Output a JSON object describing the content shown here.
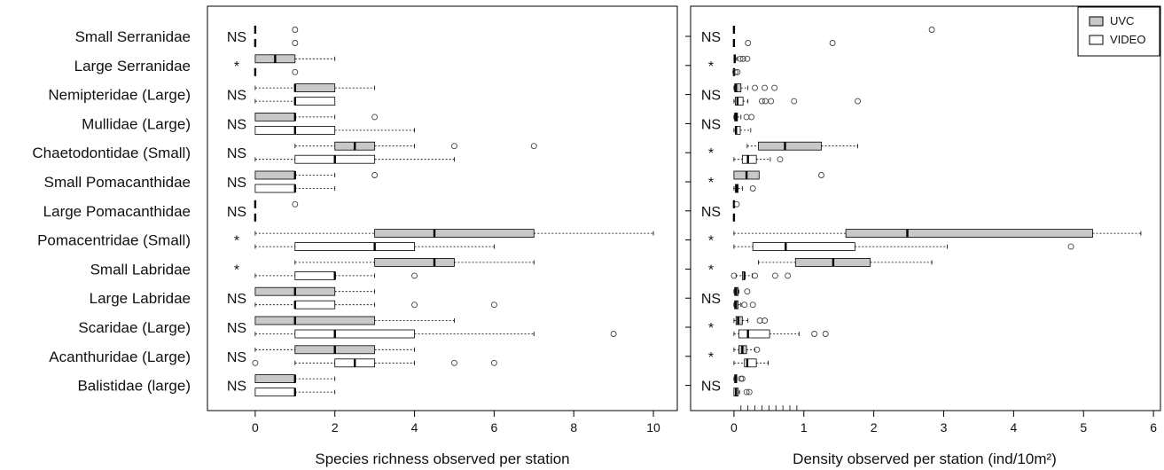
{
  "chart_data": [
    {
      "type": "boxplot",
      "xlabel": "Species richness observed per station",
      "xlim": [
        -1.2,
        10.6
      ],
      "xticks": [
        "0",
        "2",
        "4",
        "6",
        "8",
        "10"
      ],
      "categories": [
        "Small Serranidae",
        "Large Serranidae",
        "Nemipteridae (Large)",
        "Mullidae (Large)",
        "Chaetodontidae (Small)",
        "Small Pomacanthidae",
        "Large Pomacanthidae",
        "Pomacentridae (Small)",
        "Small Labridae",
        "Large Labridae",
        "Scaridae (Large)",
        "Acanthuridae (Large)",
        "Balistidae (large)"
      ],
      "significance": [
        "NS",
        "*",
        "NS",
        "NS",
        "NS",
        "NS",
        "NS",
        "*",
        "*",
        "NS",
        "NS",
        "NS",
        "NS"
      ],
      "series": [
        {
          "name": "UVC",
          "boxes": [
            {
              "min": 0,
              "q1": 0,
              "median": 0,
              "q3": 0,
              "max": 0,
              "outliers": [
                1
              ]
            },
            {
              "min": 0,
              "q1": 0,
              "median": 0.5,
              "q3": 1,
              "max": 2,
              "outliers": []
            },
            {
              "min": 0,
              "q1": 1,
              "median": 1,
              "q3": 2,
              "max": 3,
              "outliers": []
            },
            {
              "min": 0,
              "q1": 0,
              "median": 1,
              "q3": 1,
              "max": 2,
              "outliers": [
                3
              ]
            },
            {
              "min": 1,
              "q1": 2,
              "median": 2.5,
              "q3": 3,
              "max": 4,
              "outliers": [
                5,
                7
              ]
            },
            {
              "min": 0,
              "q1": 0,
              "median": 1,
              "q3": 1,
              "max": 2,
              "outliers": [
                3
              ]
            },
            {
              "min": 0,
              "q1": 0,
              "median": 0,
              "q3": 0,
              "max": 0,
              "outliers": [
                1
              ]
            },
            {
              "min": 0,
              "q1": 3,
              "median": 4.5,
              "q3": 7,
              "max": 10,
              "outliers": []
            },
            {
              "min": 1,
              "q1": 3,
              "median": 4.5,
              "q3": 5,
              "max": 7,
              "outliers": []
            },
            {
              "min": 0,
              "q1": 0,
              "median": 1,
              "q3": 2,
              "max": 3,
              "outliers": []
            },
            {
              "min": 0,
              "q1": 0,
              "median": 1,
              "q3": 3,
              "max": 5,
              "outliers": []
            },
            {
              "min": 0,
              "q1": 1,
              "median": 2,
              "q3": 3,
              "max": 4,
              "outliers": []
            },
            {
              "min": 0,
              "q1": 0,
              "median": 1,
              "q3": 1,
              "max": 2,
              "outliers": []
            }
          ]
        },
        {
          "name": "VIDEO",
          "boxes": [
            {
              "min": 0,
              "q1": 0,
              "median": 0,
              "q3": 0,
              "max": 0,
              "outliers": [
                1
              ]
            },
            {
              "min": 0,
              "q1": 0,
              "median": 0,
              "q3": 0,
              "max": 0,
              "outliers": [
                1
              ]
            },
            {
              "min": 0,
              "q1": 1,
              "median": 1,
              "q3": 2,
              "max": 2,
              "outliers": []
            },
            {
              "min": 0,
              "q1": 0,
              "median": 1,
              "q3": 2,
              "max": 4,
              "outliers": []
            },
            {
              "min": 0,
              "q1": 1,
              "median": 2,
              "q3": 3,
              "max": 5,
              "outliers": []
            },
            {
              "min": 0,
              "q1": 0,
              "median": 1,
              "q3": 1,
              "max": 2,
              "outliers": []
            },
            {
              "min": 0,
              "q1": 0,
              "median": 0,
              "q3": 0,
              "max": 0,
              "outliers": []
            },
            {
              "min": 0,
              "q1": 1,
              "median": 3,
              "q3": 4,
              "max": 6,
              "outliers": []
            },
            {
              "min": 0,
              "q1": 1,
              "median": 2,
              "q3": 2,
              "max": 3,
              "outliers": [
                4
              ]
            },
            {
              "min": 0,
              "q1": 1,
              "median": 1,
              "q3": 2,
              "max": 3,
              "outliers": [
                4,
                6
              ]
            },
            {
              "min": 0,
              "q1": 1,
              "median": 2,
              "q3": 4,
              "max": 7,
              "outliers": [
                9
              ]
            },
            {
              "min": 1,
              "q1": 2,
              "median": 2.5,
              "q3": 3,
              "max": 4,
              "outliers": [
                0,
                5,
                6
              ]
            },
            {
              "min": 0,
              "q1": 0,
              "median": 1,
              "q3": 1,
              "max": 2,
              "outliers": []
            }
          ]
        }
      ]
    },
    {
      "type": "boxplot",
      "xlabel": "Density observed per station (ind/10m²)",
      "xlim": [
        -0.62,
        6.1
      ],
      "xticks": [
        "0",
        "1",
        "2",
        "3",
        "4",
        "5",
        "6"
      ],
      "significance": [
        "NS",
        "*",
        "NS",
        "NS",
        "*",
        "*",
        "NS",
        "*",
        "*",
        "NS",
        "*",
        "*",
        "NS"
      ],
      "legend": {
        "position": "top-right",
        "entries": [
          "UVC",
          "VIDEO"
        ]
      },
      "series": [
        {
          "name": "UVC",
          "boxes": [
            {
              "min": 0,
              "q1": 0,
              "median": 0,
              "q3": 0,
              "max": 0,
              "outliers": [
                2.83
              ]
            },
            {
              "min": 0,
              "q1": 0,
              "median": 0.01,
              "q3": 0.02,
              "max": 0.04,
              "outliers": [
                0.09,
                0.13,
                0.19
              ]
            },
            {
              "min": 0,
              "q1": 0.01,
              "median": 0.03,
              "q3": 0.1,
              "max": 0.2,
              "outliers": [
                0.3,
                0.44,
                0.58
              ]
            },
            {
              "min": 0,
              "q1": 0.01,
              "median": 0.03,
              "q3": 0.05,
              "max": 0.1,
              "outliers": [
                0.18,
                0.25
              ]
            },
            {
              "min": 0.19,
              "q1": 0.35,
              "median": 0.73,
              "q3": 1.25,
              "max": 1.77,
              "outliers": []
            },
            {
              "min": 0,
              "q1": 0,
              "median": 0.18,
              "q3": 0.36,
              "max": 0.36,
              "outliers": [
                1.25
              ]
            },
            {
              "min": 0,
              "q1": 0,
              "median": 0,
              "q3": 0,
              "max": 0,
              "outliers": [
                0.04
              ]
            },
            {
              "min": 0,
              "q1": 1.6,
              "median": 2.48,
              "q3": 5.13,
              "max": 5.82,
              "outliers": []
            },
            {
              "min": 0.35,
              "q1": 0.88,
              "median": 1.42,
              "q3": 1.95,
              "max": 2.83,
              "outliers": []
            },
            {
              "min": 0,
              "q1": 0.01,
              "median": 0.03,
              "q3": 0.06,
              "max": 0.07,
              "outliers": [
                0.19
              ]
            },
            {
              "min": 0,
              "q1": 0.03,
              "median": 0.06,
              "q3": 0.12,
              "max": 0.2,
              "outliers": [
                0.37,
                0.44
              ]
            },
            {
              "min": 0,
              "q1": 0.07,
              "median": 0.12,
              "q3": 0.18,
              "max": 0.3,
              "outliers": [
                0.33
              ]
            },
            {
              "min": 0,
              "q1": 0.01,
              "median": 0.03,
              "q3": 0.04,
              "max": 0.04,
              "outliers": [
                0.1,
                0.12
              ]
            }
          ]
        },
        {
          "name": "VIDEO",
          "boxes": [
            {
              "min": 0,
              "q1": 0,
              "median": 0,
              "q3": 0,
              "max": 0,
              "outliers": [
                0.2,
                1.41
              ]
            },
            {
              "min": 0,
              "q1": 0,
              "median": 0,
              "q3": 0,
              "max": 0,
              "outliers": [
                0.02,
                0.05
              ]
            },
            {
              "min": 0,
              "q1": 0.02,
              "median": 0.05,
              "q3": 0.13,
              "max": 0.2,
              "outliers": [
                0.4,
                0.45,
                0.53,
                0.86,
                1.77
              ]
            },
            {
              "min": 0,
              "q1": 0.02,
              "median": 0.03,
              "q3": 0.09,
              "max": 0.24,
              "outliers": []
            },
            {
              "min": 0,
              "q1": 0.12,
              "median": 0.2,
              "q3": 0.32,
              "max": 0.52,
              "outliers": [
                0.66
              ]
            },
            {
              "min": 0,
              "q1": 0.02,
              "median": 0.04,
              "q3": 0.06,
              "max": 0.12,
              "outliers": [
                0.27
              ]
            },
            {
              "min": 0,
              "q1": 0,
              "median": 0,
              "q3": 0,
              "max": 0,
              "outliers": []
            },
            {
              "min": 0,
              "q1": 0.27,
              "median": 0.74,
              "q3": 1.73,
              "max": 3.05,
              "outliers": [
                4.82
              ]
            },
            {
              "min": 0.03,
              "q1": 0.12,
              "median": 0.15,
              "q3": 0.15,
              "max": 0.26,
              "outliers": [
                0,
                0.3,
                0.59,
                0.77
              ]
            },
            {
              "min": 0,
              "q1": 0.01,
              "median": 0.03,
              "q3": 0.06,
              "max": 0.1,
              "outliers": [
                0.15,
                0.27
              ]
            },
            {
              "min": 0,
              "q1": 0.07,
              "median": 0.2,
              "q3": 0.51,
              "max": 0.93,
              "outliers": [
                1.15,
                1.31
              ]
            },
            {
              "min": 0,
              "q1": 0.15,
              "median": 0.19,
              "q3": 0.32,
              "max": 0.49,
              "outliers": []
            },
            {
              "min": 0,
              "q1": 0,
              "median": 0.03,
              "q3": 0.06,
              "max": 0.08,
              "outliers": [
                0.18,
                0.22
              ]
            }
          ]
        }
      ]
    }
  ],
  "colors": {
    "UVC": "#c8c8c8",
    "VIDEO": "#ffffff"
  }
}
